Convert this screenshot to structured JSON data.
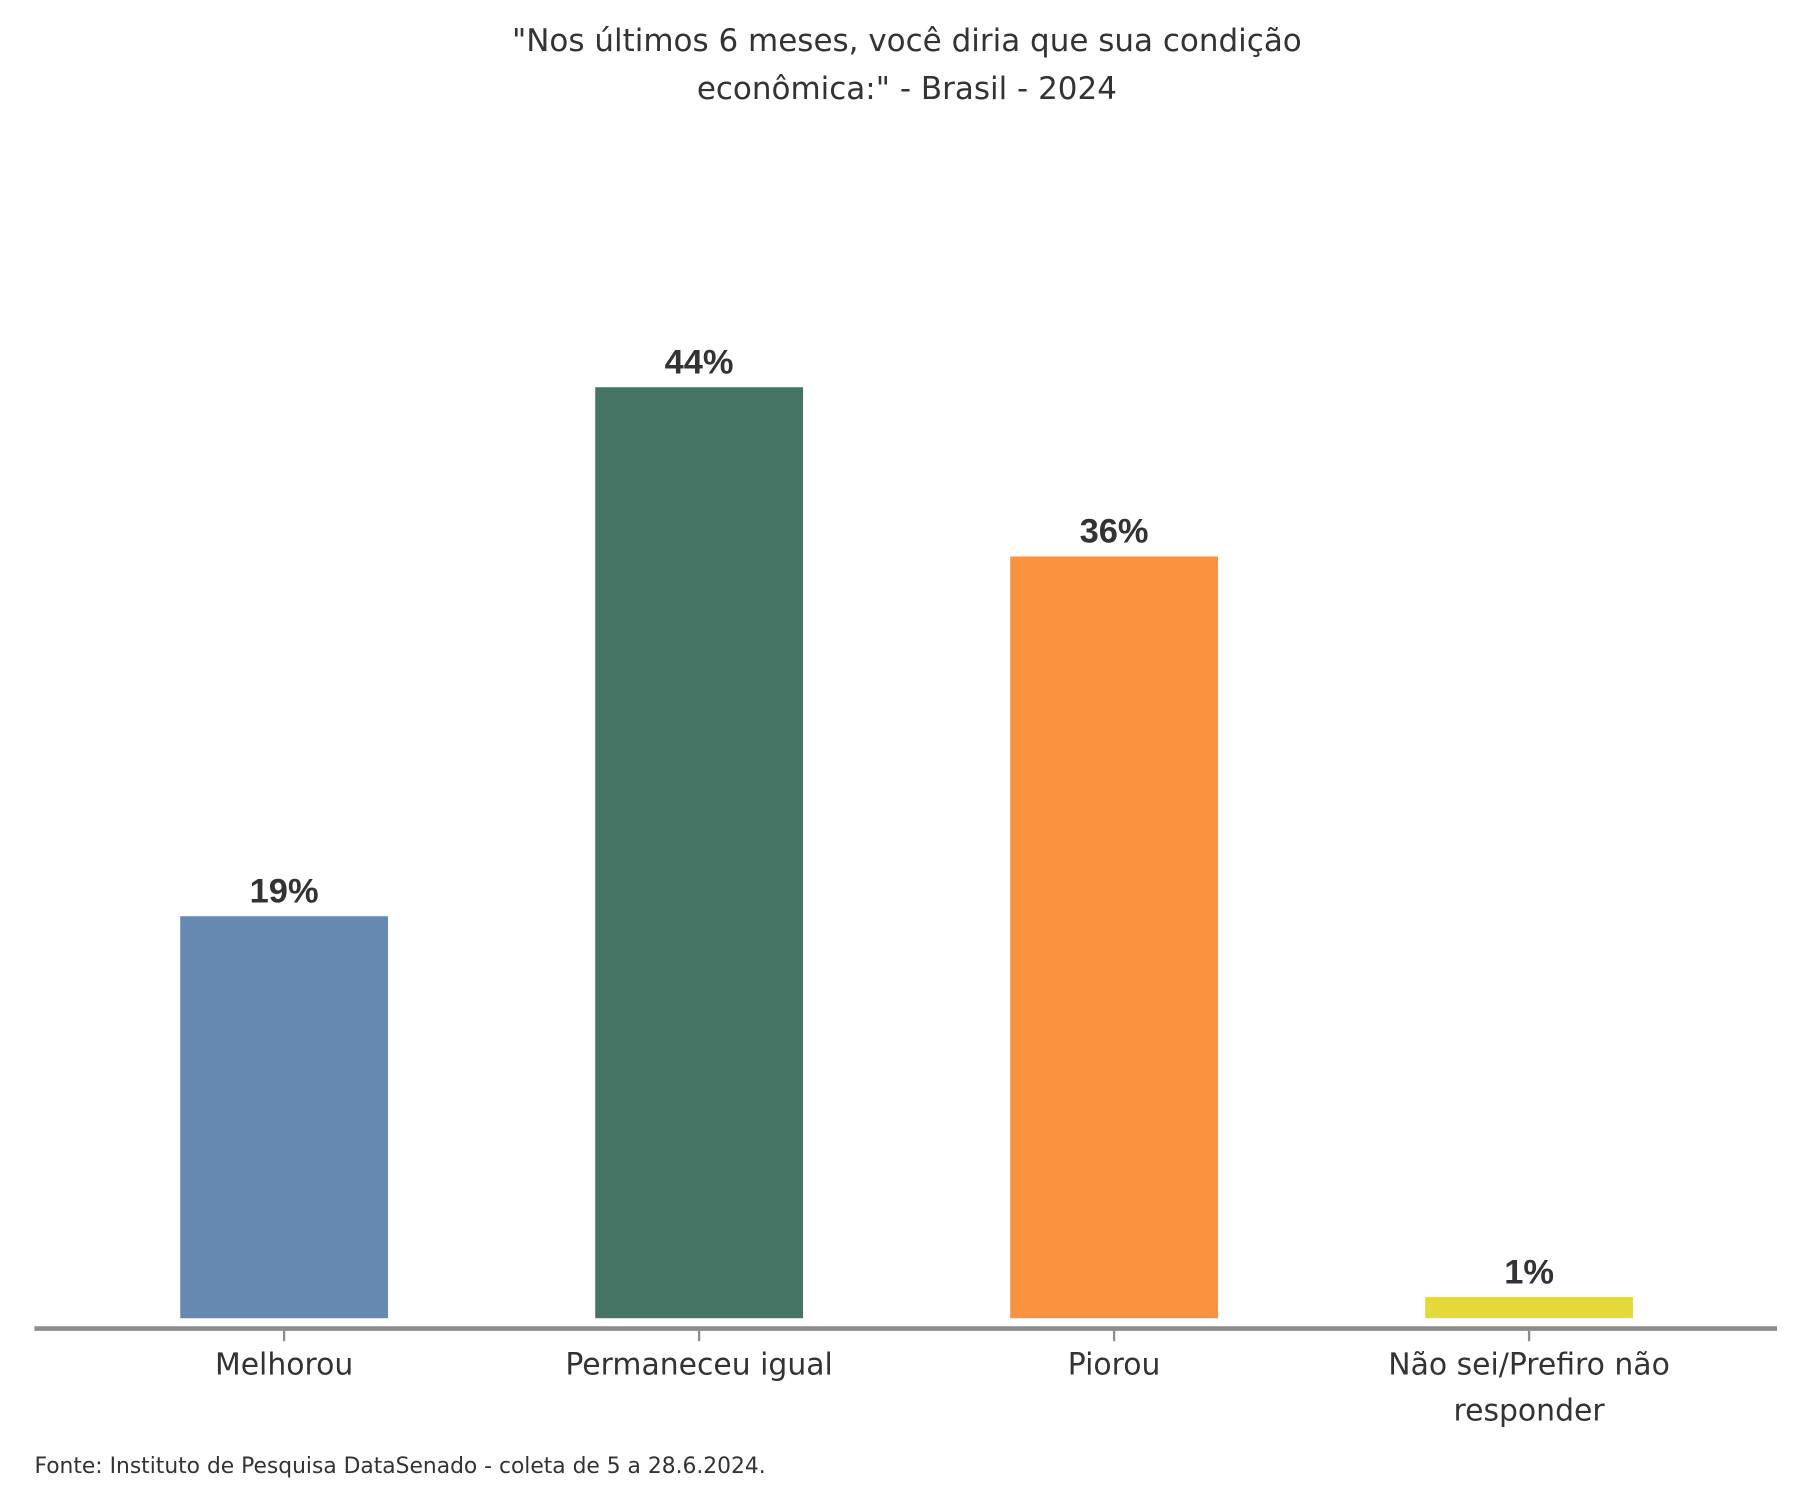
{
  "chart_data": {
    "type": "bar",
    "title_lines": [
      "\"Nos últimos 6 meses, você diria que sua condição",
      "econômica:\" - Brasil - 2024"
    ],
    "categories": [
      "Melhorou",
      "Permaneceu igual",
      "Piorou",
      "Não sei/Prefiro não responder"
    ],
    "category_lines": [
      [
        "Melhorou"
      ],
      [
        "Permaneceu igual"
      ],
      [
        "Piorou"
      ],
      [
        "Não sei/Prefiro não",
        "responder"
      ]
    ],
    "values": [
      19,
      44,
      36,
      1
    ],
    "data_labels": [
      "19%",
      "44%",
      "36%",
      "1%"
    ],
    "colors": [
      "#6589b1",
      "#467464",
      "#fa923f",
      "#e5d93a"
    ],
    "ylim": [
      0,
      44
    ],
    "grid": false,
    "source": "Fonte: Instituto de Pesquisa DataSenado - coleta de 5 a 28.6.2024."
  }
}
